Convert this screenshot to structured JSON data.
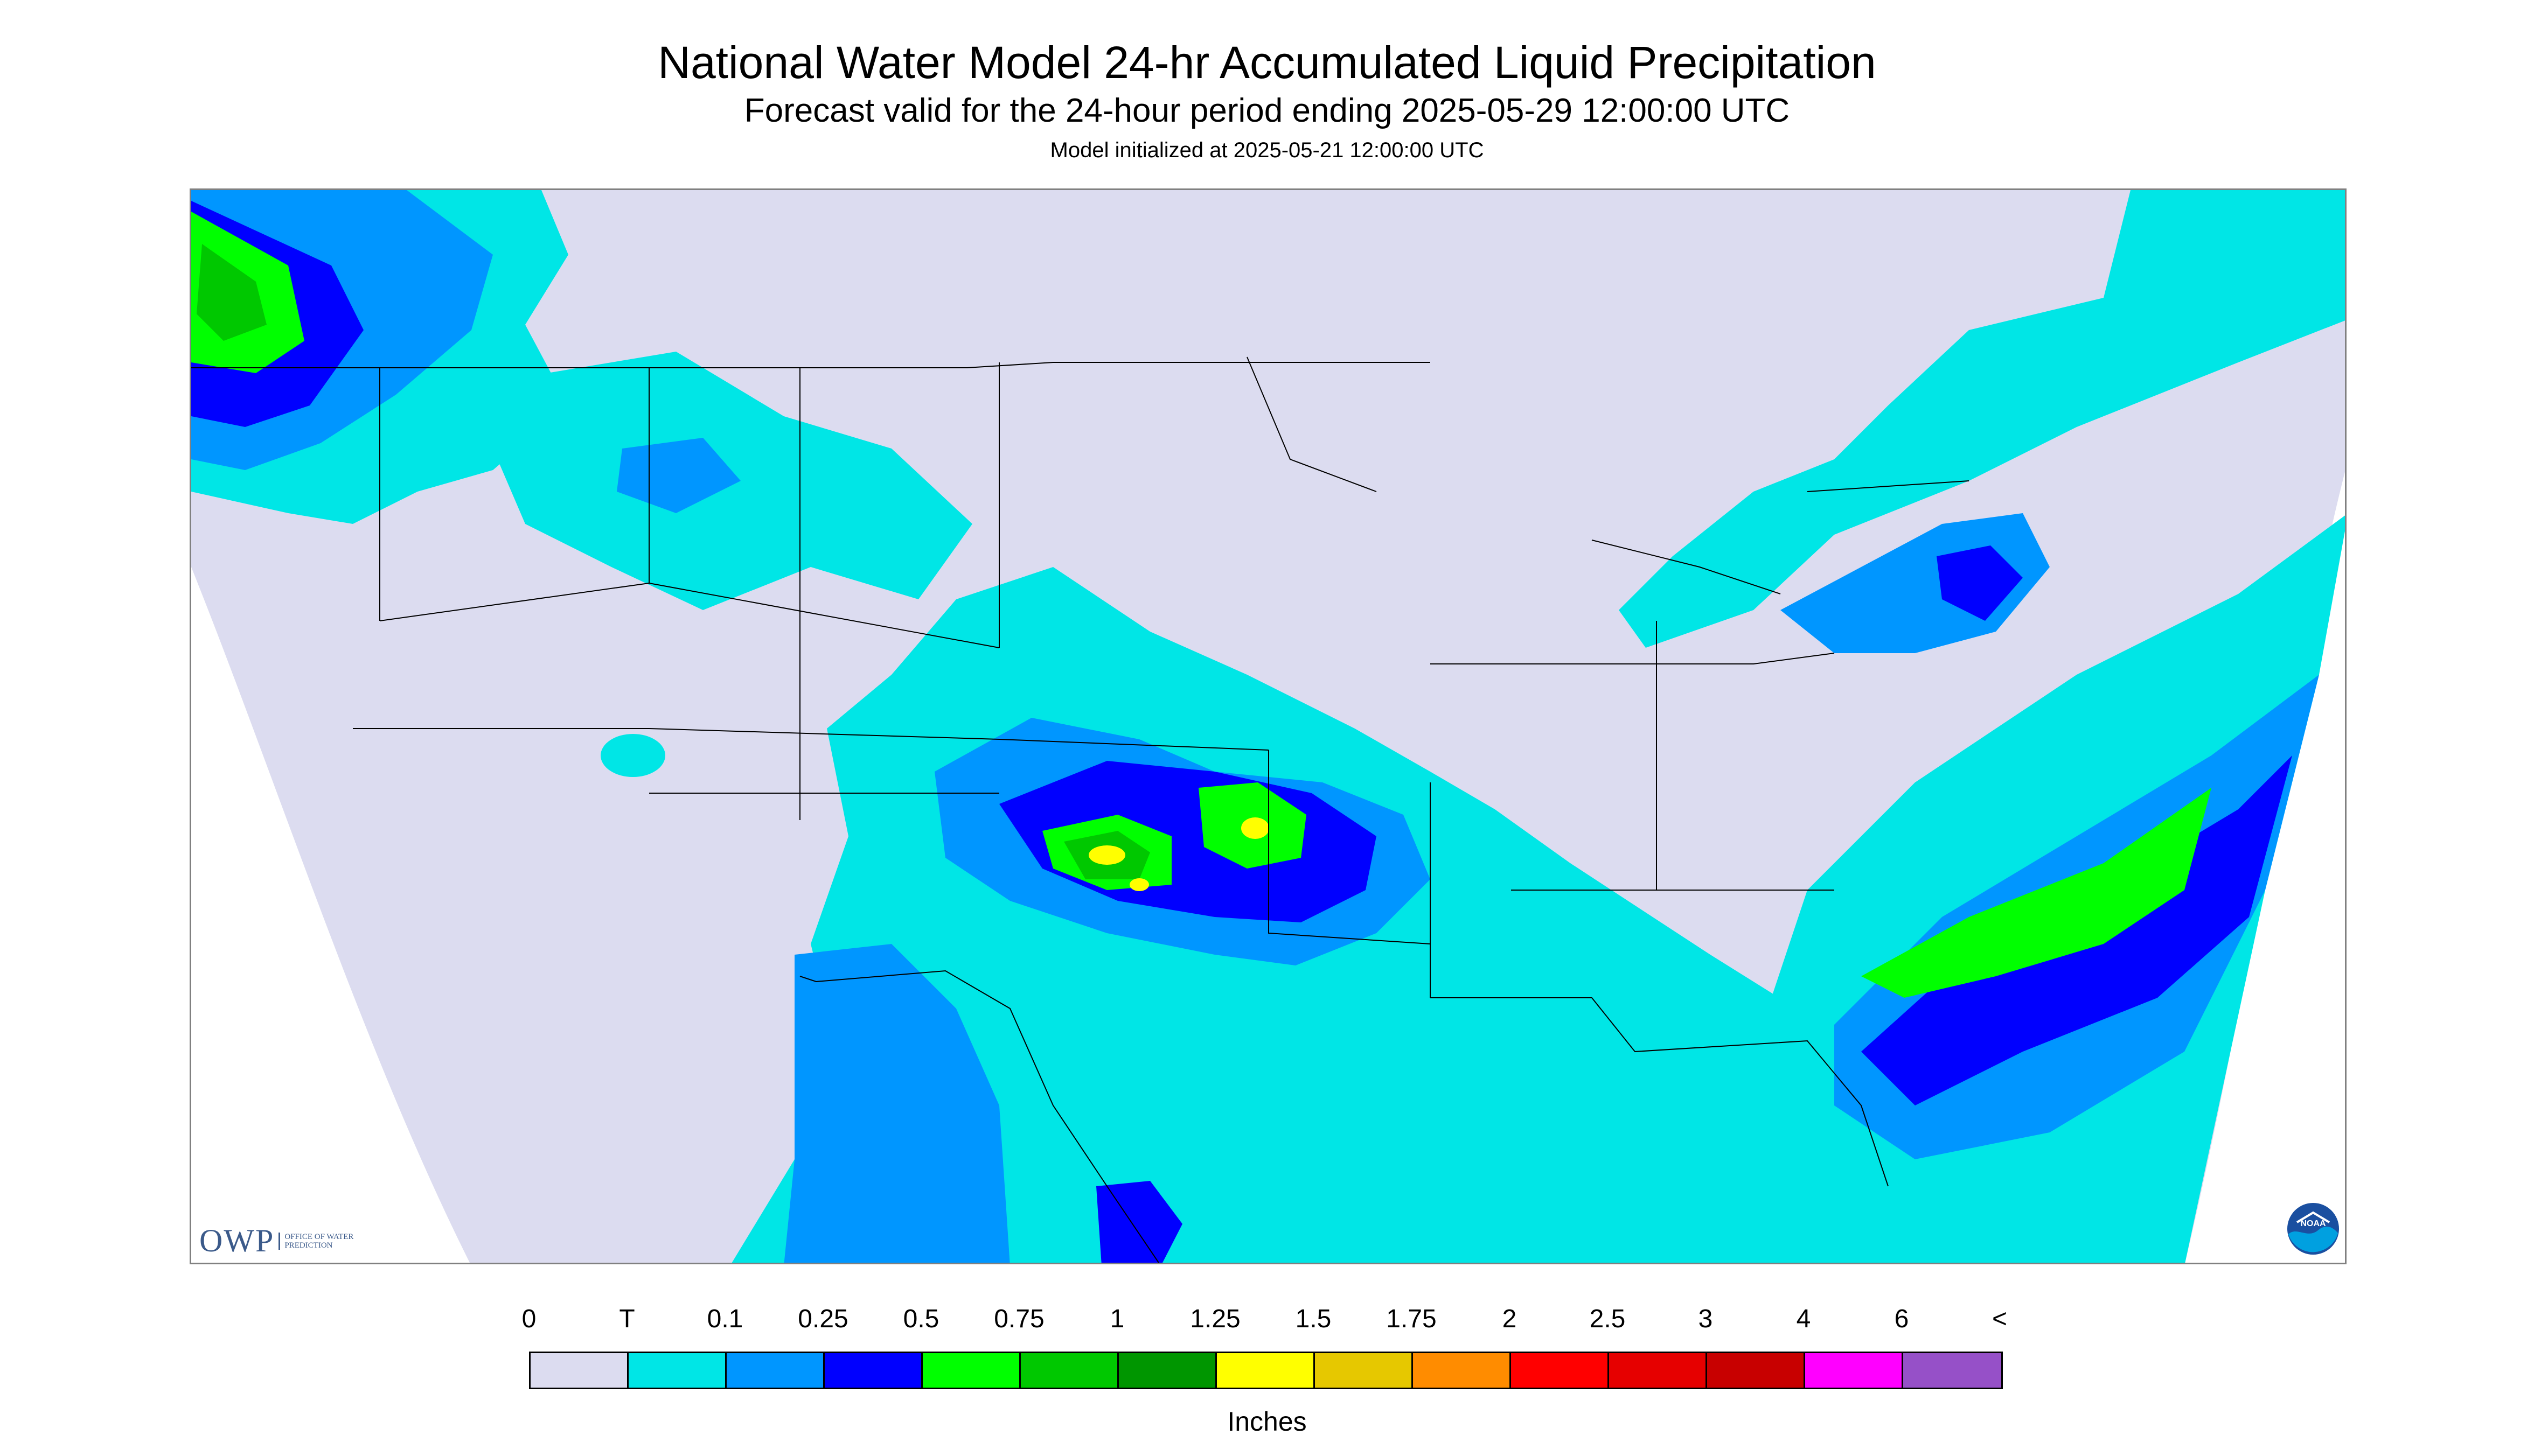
{
  "title": "National Water Model 24-hr Accumulated Liquid Precipitation",
  "subtitle": "Forecast valid for the 24-hour period ending 2025-05-29 12:00:00 UTC",
  "model_init": "Model initialized at 2025-05-21 12:00:00 UTC",
  "logo_owp": {
    "text": "OWP",
    "subtext": "OFFICE OF WATER PREDICTION"
  },
  "logo_noaa": {
    "text": "NOAA"
  },
  "legend": {
    "units": "Inches",
    "labels": [
      "0",
      "T",
      "0.1",
      "0.25",
      "0.5",
      "0.75",
      "1",
      "1.25",
      "1.5",
      "1.75",
      "2",
      "2.5",
      "3",
      "4",
      "6",
      "<"
    ],
    "colors": [
      "#dcdcf0",
      "#00e6e6",
      "#0096ff",
      "#0000ff",
      "#00ff00",
      "#00c800",
      "#009600",
      "#ffff00",
      "#e6c800",
      "#ff8c00",
      "#ff0000",
      "#e60000",
      "#c80000",
      "#ff00ff",
      "#9650c8"
    ]
  },
  "map_colors": {
    "background": "#dcdcf0",
    "trace": "#00e6e6",
    "light": "#0096ff",
    "moderate": "#0000ff",
    "heavy": "#00ff00",
    "heavier": "#00c800",
    "very_heavy": "#ffff00",
    "outside": "#ffffff",
    "borders": "#000000"
  }
}
